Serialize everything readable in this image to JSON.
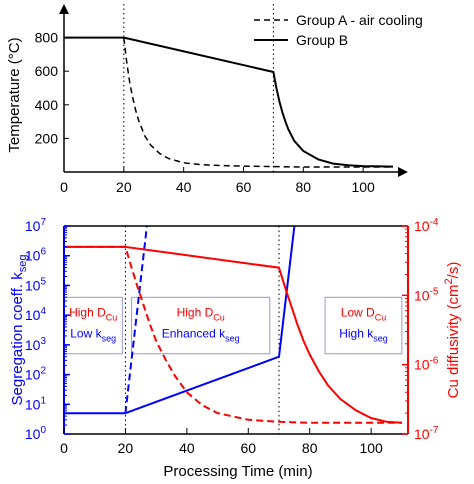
{
  "chart_data": [
    {
      "type": "line",
      "ylabel": "Temperature (°C)",
      "xlim": [
        0,
        115
      ],
      "ylim": [
        0,
        1000
      ],
      "x_ticks": [
        0,
        20,
        40,
        60,
        80,
        100
      ],
      "y_ticks": [
        200,
        400,
        600,
        800
      ],
      "y_tick_labels": [
        "200",
        "400",
        "600",
        "800"
      ],
      "grid": false,
      "legend_position": "top-right",
      "series": [
        {
          "name": "Group A - air cooling",
          "style": "dashed",
          "color": "#000000",
          "x": [
            0,
            20,
            21,
            22,
            23,
            24,
            25,
            27,
            29,
            32,
            35,
            40,
            45,
            50,
            60,
            70,
            80,
            90,
            100,
            110
          ],
          "y": [
            800,
            800,
            650,
            530,
            440,
            365,
            305,
            215,
            160,
            110,
            80,
            55,
            45,
            40,
            35,
            32,
            30,
            30,
            30,
            30
          ]
        },
        {
          "name": "Group B",
          "style": "solid",
          "color": "#000000",
          "x": [
            0,
            20,
            70,
            71,
            72,
            73,
            74,
            75,
            77,
            80,
            85,
            90,
            95,
            100,
            110
          ],
          "y": [
            800,
            800,
            595,
            500,
            420,
            355,
            300,
            255,
            185,
            125,
            75,
            50,
            40,
            35,
            32
          ]
        }
      ],
      "annotations": [
        "vertical dotted line at x=20",
        "vertical dotted line at x=70"
      ]
    },
    {
      "type": "line",
      "xlabel": "Processing Time (min)",
      "xlim": [
        0,
        112
      ],
      "x_ticks": [
        0,
        20,
        40,
        60,
        80,
        100
      ],
      "left_axis": {
        "label_main": "Segregation coeff. k",
        "label_sub": "seg",
        "scale": "log",
        "ylim": [
          1,
          10000000
        ],
        "color": "#0000ff",
        "tick_base": "10",
        "tick_exps": [
          "0",
          "1",
          "2",
          "3",
          "4",
          "5",
          "6",
          "7"
        ]
      },
      "right_axis": {
        "label_main": "Cu diffusivity (cm",
        "label_sup": "2",
        "label_end": "/s)",
        "scale": "log",
        "ylim": [
          1e-07,
          0.0001
        ],
        "color": "#ff0000",
        "tick_base": "10",
        "tick_exps": [
          "-7",
          "-6",
          "-5",
          "-4"
        ]
      },
      "series": [
        {
          "axis": "left",
          "style": "solid",
          "color": "#0000ff",
          "x": [
            0,
            20,
            70,
            75
          ],
          "y": [
            5,
            5,
            400,
            10000000
          ]
        },
        {
          "axis": "left",
          "style": "dashed",
          "color": "#0000ff",
          "x": [
            20,
            27
          ],
          "y": [
            5,
            10000000
          ]
        },
        {
          "axis": "right",
          "style": "solid",
          "color": "#ff0000",
          "x": [
            0,
            20,
            70,
            72,
            74,
            76,
            78,
            80,
            83,
            86,
            90,
            95,
            100,
            105,
            110
          ],
          "y": [
            5e-05,
            5e-05,
            2.5e-05,
            1.3e-05,
            7e-06,
            3.8e-06,
            2.2e-06,
            1.4e-06,
            8e-07,
            5e-07,
            3.2e-07,
            2.2e-07,
            1.7e-07,
            1.5e-07,
            1.45e-07
          ]
        },
        {
          "axis": "right",
          "style": "dashed",
          "color": "#ff0000",
          "x": [
            0,
            20,
            22,
            24,
            26,
            28,
            30,
            33,
            36,
            40,
            45,
            50,
            60,
            70,
            80,
            90,
            100,
            110
          ],
          "y": [
            5e-05,
            5e-05,
            2.5e-05,
            1.3e-05,
            7e-06,
            3.8e-06,
            2.2e-06,
            1.2e-06,
            7e-07,
            4e-07,
            2.6e-07,
            2e-07,
            1.6e-07,
            1.5e-07,
            1.45e-07,
            1.45e-07,
            1.45e-07,
            1.45e-07
          ]
        }
      ],
      "annotation_boxes": [
        {
          "red_main": "High D",
          "red_sub": "Cu",
          "blue_main": "Low k",
          "blue_sub": "seg",
          "x": [
            0,
            19
          ],
          "y_exp": [
            2.7,
            4.6
          ]
        },
        {
          "red_main": "High D",
          "red_sub": "Cu",
          "blue_main": "Enhanced k",
          "blue_sub": "seg",
          "x": [
            22,
            67
          ],
          "y_exp": [
            2.7,
            4.6
          ]
        },
        {
          "red_main": "Low D",
          "red_sub": "Cu",
          "blue_main": "High k",
          "blue_sub": "seg",
          "x": [
            85,
            110
          ],
          "y_exp": [
            2.7,
            4.6
          ]
        }
      ],
      "annotations": [
        "vertical dotted line at x=20",
        "vertical dotted line at x=70"
      ]
    }
  ]
}
